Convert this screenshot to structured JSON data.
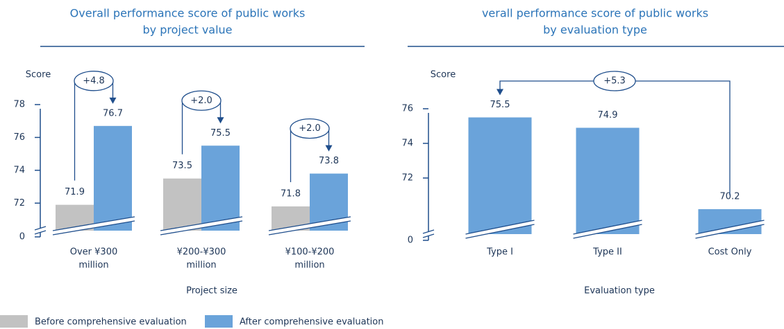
{
  "chart_data": [
    {
      "type": "bar",
      "title": [
        "Overall performance score of public works",
        "by project value"
      ],
      "y_label": "Score",
      "x_label": "Project size",
      "categories": [
        [
          "Over ¥300",
          "million"
        ],
        [
          "¥200-¥300",
          "million"
        ],
        [
          "¥100-¥200",
          "million"
        ]
      ],
      "series": [
        {
          "name": "Before comprehensive evaluation",
          "color": "#c2c2c2",
          "values": [
            71.9,
            73.5,
            71.8
          ]
        },
        {
          "name": "After comprehensive evaluation",
          "color": "#6aa3da",
          "values": [
            76.7,
            75.5,
            73.8
          ]
        }
      ],
      "annotations": [
        "+4.8",
        "+2.0",
        "+2.0"
      ],
      "ylim": [
        0,
        78
      ],
      "yticks": [
        0,
        72,
        74,
        76,
        78
      ],
      "axis_break": [
        0,
        71
      ]
    },
    {
      "type": "bar",
      "title": [
        "verall performance score of public works",
        "by evaluation type"
      ],
      "y_label": "Score",
      "x_label": "Evaluation type",
      "categories": [
        [
          "Type I"
        ],
        [
          "Type II"
        ],
        [
          "Cost Only"
        ]
      ],
      "values": [
        75.5,
        74.9,
        70.2
      ],
      "color": "#6aa3da",
      "annotations": [
        "+5.3"
      ],
      "ylim": [
        0,
        76
      ],
      "yticks": [
        0,
        72,
        74,
        76
      ],
      "axis_break": [
        0,
        69.6
      ]
    }
  ]
}
